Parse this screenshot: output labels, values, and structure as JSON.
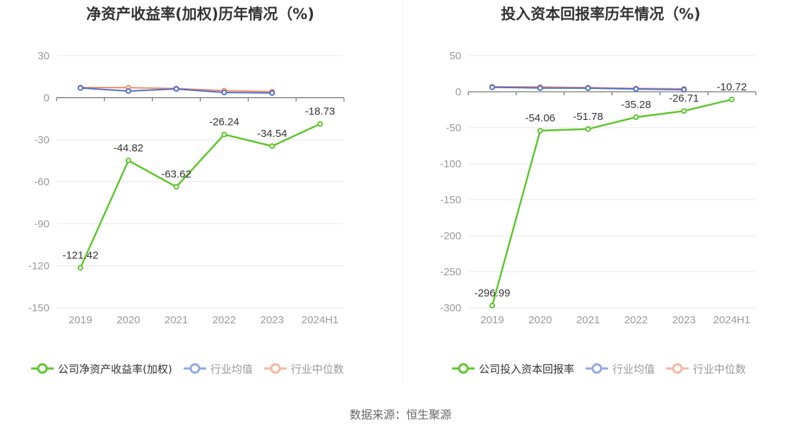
{
  "colors": {
    "company": "#5cc62b",
    "industry_avg": "#4a6fce",
    "industry_median": "#f08c64",
    "grid": "#e5e5e5",
    "axis": "#555555",
    "tick_text": "#999999",
    "legend_avg_icon": "#8fa9e8",
    "legend_median_icon": "#f5b6a0"
  },
  "source": "数据来源：恒生聚源",
  "chart_data": [
    {
      "type": "line",
      "title": "净资产收益率(加权)历年情况（%)",
      "categories": [
        "2019",
        "2020",
        "2021",
        "2022",
        "2023",
        "2024H1"
      ],
      "ylim": [
        -150,
        30
      ],
      "yticks": [
        30,
        0,
        -30,
        -60,
        -90,
        -120,
        -150
      ],
      "grid": true,
      "legend_position": "bottom",
      "series": [
        {
          "name": "公司净资产收益率(加权)",
          "values": [
            -121.42,
            -44.82,
            -63.62,
            -26.24,
            -34.54,
            -18.73
          ],
          "labels": [
            "-121.42",
            "-44.82",
            "-63.62",
            "-26.24",
            "-34.54",
            "-18.73"
          ]
        },
        {
          "name": "行业均值",
          "values": [
            7.0,
            4.8,
            6.3,
            3.8,
            3.4,
            null
          ]
        },
        {
          "name": "行业中位数",
          "values": [
            7.3,
            7.2,
            6.6,
            5.1,
            4.4,
            null
          ]
        }
      ]
    },
    {
      "type": "line",
      "title": "投入资本回报率历年情况（%)",
      "categories": [
        "2019",
        "2020",
        "2021",
        "2022",
        "2023",
        "2024H1"
      ],
      "ylim": [
        -300,
        50
      ],
      "yticks": [
        50,
        0,
        -50,
        -100,
        -150,
        -200,
        -250,
        -300
      ],
      "grid": true,
      "legend_position": "bottom",
      "series": [
        {
          "name": "公司投入资本回报率",
          "values": [
            -296.99,
            -54.06,
            -51.78,
            -35.28,
            -26.71,
            -10.72
          ],
          "labels": [
            "-296.99",
            "-54.06",
            "-51.78",
            "-35.28",
            "-26.71",
            "-10.72"
          ]
        },
        {
          "name": "行业均值",
          "values": [
            6.2,
            5.2,
            5.0,
            3.8,
            3.0,
            null
          ]
        },
        {
          "name": "行业中位数",
          "values": [
            7.0,
            6.6,
            5.8,
            4.6,
            4.0,
            null
          ]
        }
      ]
    }
  ]
}
